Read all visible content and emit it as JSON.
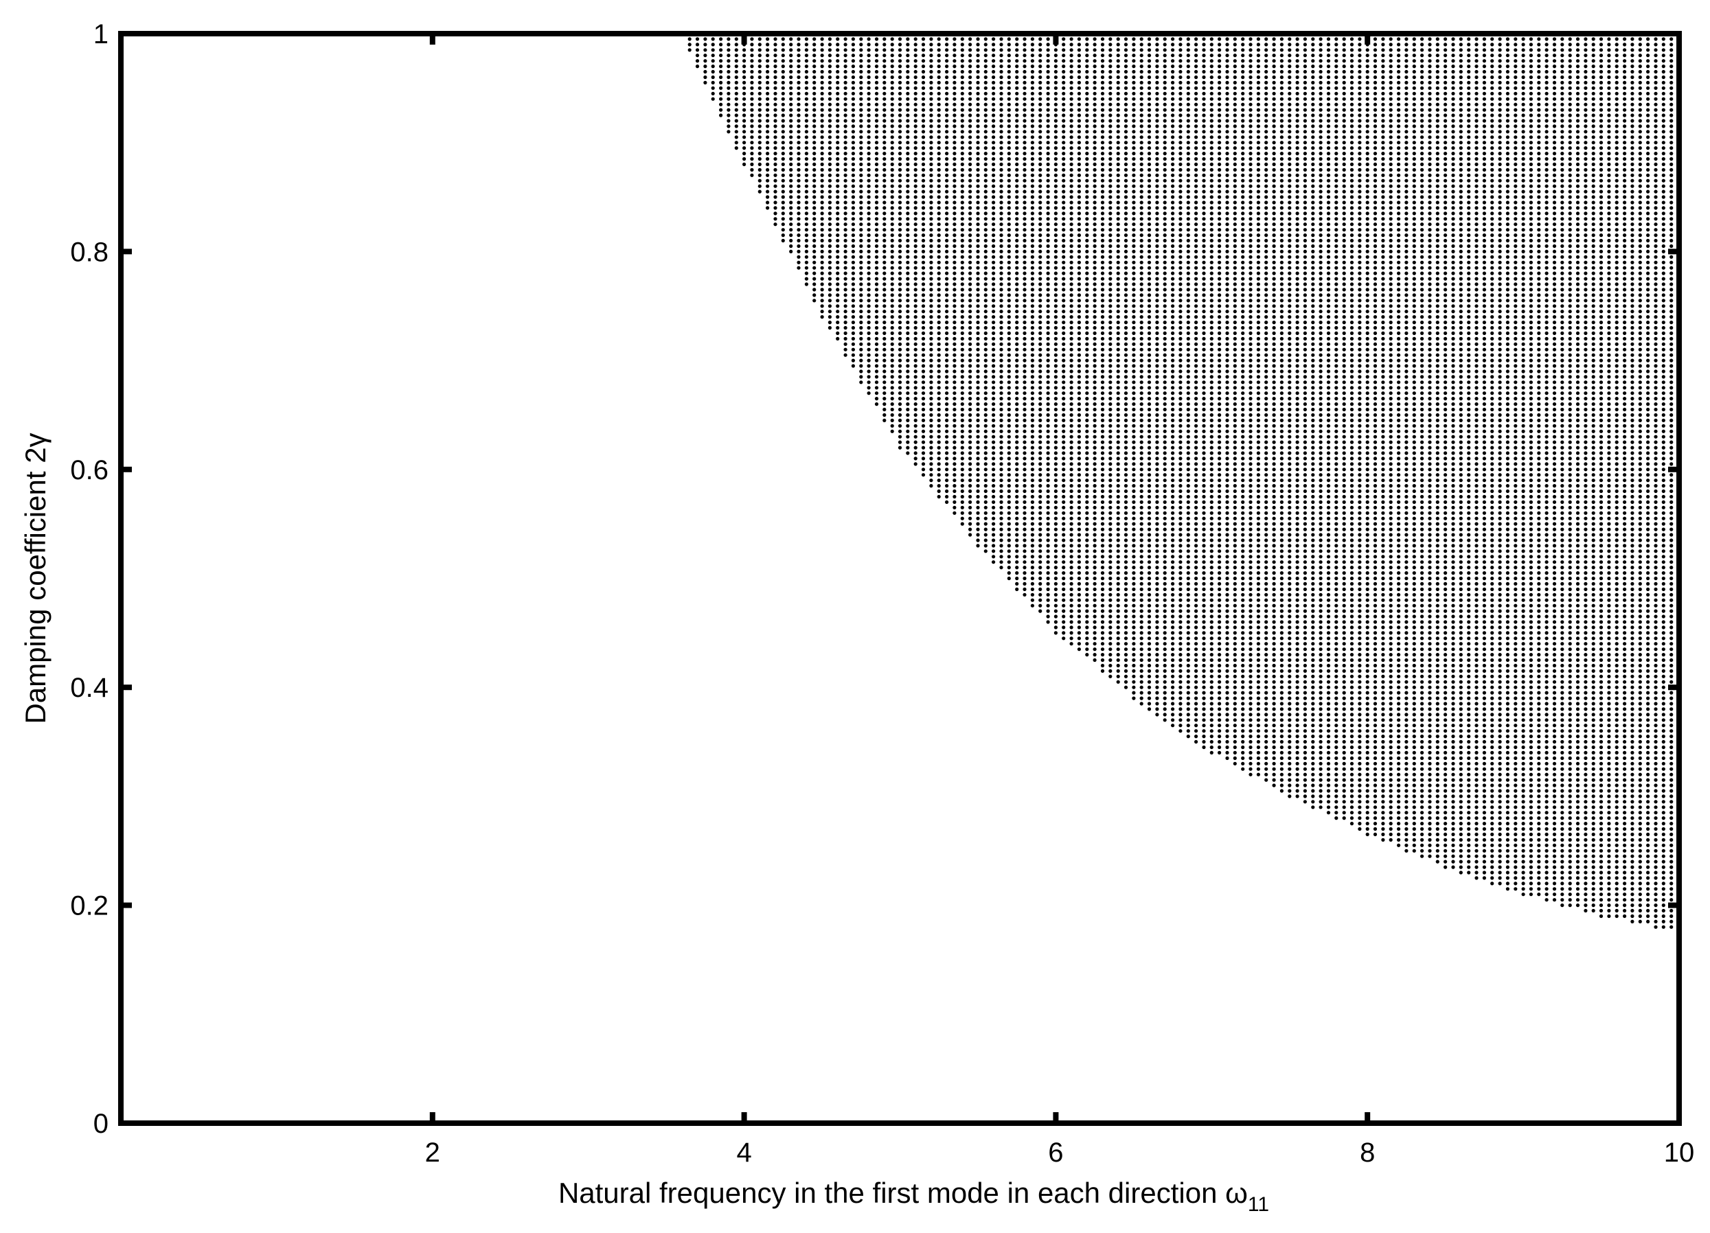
{
  "chart_data": {
    "type": "scatter",
    "title": "",
    "xlabel_main": "Natural frequency in the first mode in each direction ω",
    "xlabel_sub": "11",
    "ylabel": "Damping coefficient 2γ",
    "xlim": [
      0,
      10
    ],
    "ylim": [
      0,
      1
    ],
    "xticks": [
      2,
      4,
      6,
      8,
      10
    ],
    "yticks": [
      0,
      0.2,
      0.4,
      0.6,
      0.8,
      1
    ],
    "xtick_labels": [
      "2",
      "4",
      "6",
      "8",
      "10"
    ],
    "ytick_labels": [
      "0",
      "0.2",
      "0.4",
      "0.6",
      "0.8",
      "1"
    ],
    "grid": false,
    "marker_color": "#000000",
    "region": {
      "description_of_boundary": "lower boundary of the dotted region: points (x, y) with y >= boundary(x) and x >= 3.6",
      "boundary_points": [
        {
          "x": 3.6,
          "y": 1.0
        },
        {
          "x": 4.0,
          "y": 0.88
        },
        {
          "x": 4.5,
          "y": 0.74
        },
        {
          "x": 5.0,
          "y": 0.62
        },
        {
          "x": 5.5,
          "y": 0.53
        },
        {
          "x": 6.0,
          "y": 0.45
        },
        {
          "x": 6.5,
          "y": 0.39
        },
        {
          "x": 7.0,
          "y": 0.34
        },
        {
          "x": 7.5,
          "y": 0.3
        },
        {
          "x": 8.0,
          "y": 0.265
        },
        {
          "x": 8.5,
          "y": 0.235
        },
        {
          "x": 9.0,
          "y": 0.21
        },
        {
          "x": 9.5,
          "y": 0.19
        },
        {
          "x": 10.0,
          "y": 0.175
        }
      ],
      "grid_step_x": 0.05,
      "grid_step_y": 0.005
    }
  }
}
